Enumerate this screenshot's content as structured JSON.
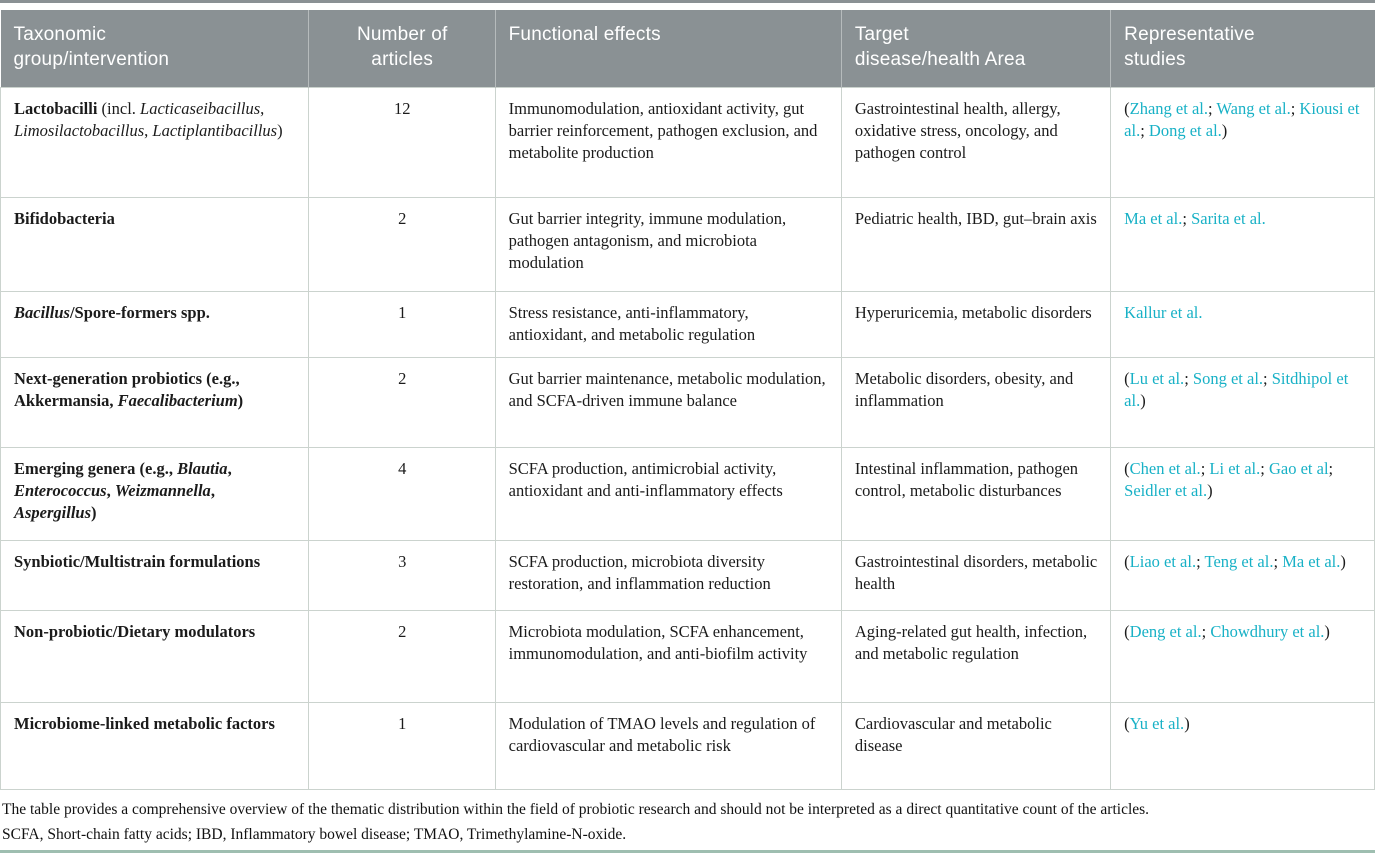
{
  "colors": {
    "accent_link": "#18b1c6",
    "header_bg": "#8a9194",
    "cell_border": "#cbd3ce",
    "bottom_rule": "#9ebeb0"
  },
  "table": {
    "headers": [
      "Taxonomic\ngroup/intervention",
      "Number of\narticles",
      "Functional effects",
      "Target\ndisease/health Area",
      "Representative\nstudies"
    ],
    "rows": [
      {
        "group": [
          {
            "t": "Lactobacilli",
            "b": 1
          },
          {
            "t": " (incl. "
          },
          {
            "t": "Lacticaseibacillus",
            "i": 1
          },
          {
            "t": ", "
          },
          {
            "t": "Limosilactobacillus",
            "i": 1
          },
          {
            "t": ", "
          },
          {
            "t": "Lactiplantibacillus",
            "i": 1
          },
          {
            "t": ")"
          }
        ],
        "count": "12",
        "effects": "Immunomodulation, antioxidant activity, gut barrier reinforcement, pathogen exclusion, and metabolite production",
        "target": "Gastrointestinal health, allergy, oxidative stress, oncology, and pathogen control",
        "studies": {
          "paren": true,
          "links": [
            "Zhang et al.",
            "Wang et al.",
            "Kiousi et al.",
            "Dong et al."
          ]
        }
      },
      {
        "group": [
          {
            "t": "Bifidobacteria",
            "b": 1
          }
        ],
        "count": "2",
        "effects": "Gut barrier integrity, immune modulation, pathogen antagonism, and microbiota modulation",
        "target": "Pediatric health, IBD, gut–brain axis",
        "studies": {
          "paren": false,
          "links": [
            "Ma et al.",
            "Sarita et al."
          ]
        }
      },
      {
        "group": [
          {
            "t": "Bacillus",
            "b": 1,
            "i": 1
          },
          {
            "t": "/Spore-formers spp.",
            "b": 1
          }
        ],
        "count": "1",
        "effects": "Stress resistance, anti-inflammatory, antioxidant, and metabolic regulation",
        "target": "Hyperuricemia, metabolic disorders",
        "studies": {
          "paren": false,
          "links": [
            "Kallur et al."
          ]
        }
      },
      {
        "group": [
          {
            "t": "Next-generation probiotics (e.g., Akkermansia, ",
            "b": 1
          },
          {
            "t": "Faecalibacterium",
            "b": 1,
            "i": 1
          },
          {
            "t": ")",
            "b": 1
          }
        ],
        "count": "2",
        "effects": "Gut barrier maintenance, metabolic modulation, and SCFA-driven immune balance",
        "target": "Metabolic disorders, obesity, and inflammation",
        "studies": {
          "paren": true,
          "links": [
            "Lu et al.",
            "Song et al.",
            "Sitdhipol et al."
          ]
        }
      },
      {
        "group": [
          {
            "t": "Emerging genera (e.g., ",
            "b": 1
          },
          {
            "t": "Blautia",
            "b": 1,
            "i": 1
          },
          {
            "t": ", ",
            "b": 1
          },
          {
            "t": "Enterococcus",
            "b": 1,
            "i": 1
          },
          {
            "t": ", ",
            "b": 1
          },
          {
            "t": "Weizmannella",
            "b": 1,
            "i": 1
          },
          {
            "t": ", ",
            "b": 1
          },
          {
            "t": "Aspergillus",
            "b": 1,
            "i": 1
          },
          {
            "t": ")",
            "b": 1
          }
        ],
        "count": "4",
        "effects": "SCFA production, antimicrobial activity, antioxidant and anti-inflammatory effects",
        "target": "Intestinal inflammation, pathogen control, metabolic disturbances",
        "studies": {
          "paren": true,
          "links": [
            "Chen et al.",
            "Li et al.",
            "Gao et al",
            "Seidler et al."
          ]
        }
      },
      {
        "group": [
          {
            "t": "Synbiotic/Multistrain formulations",
            "b": 1
          }
        ],
        "count": "3",
        "effects": "SCFA production, microbiota diversity restoration, and inflammation reduction",
        "target": "Gastrointestinal disorders, metabolic health",
        "studies": {
          "paren": true,
          "links": [
            "Liao et al.",
            "Teng et al.",
            "Ma et al."
          ]
        }
      },
      {
        "group": [
          {
            "t": "Non-probiotic/Dietary modulators",
            "b": 1
          }
        ],
        "count": "2",
        "effects": "Microbiota modulation, SCFA enhancement, immunomodulation, and anti-biofilm activity",
        "target": "Aging-related gut health, infection, and metabolic regulation",
        "studies": {
          "paren": true,
          "links": [
            "Deng et al.",
            "Chowdhury et al."
          ]
        }
      },
      {
        "group": [
          {
            "t": "Microbiome-linked metabolic factors",
            "b": 1
          }
        ],
        "count": "1",
        "effects": "Modulation of TMAO levels and regulation of cardiovascular and metabolic risk",
        "target": "Cardiovascular and metabolic disease",
        "studies": {
          "paren": true,
          "links": [
            "Yu et al."
          ]
        }
      }
    ]
  },
  "notes": {
    "line1": "The table provides a comprehensive overview of the thematic distribution within the field of probiotic research and should not be interpreted as a direct quantitative count of the articles.",
    "line2": "SCFA, Short-chain fatty acids; IBD, Inflammatory bowel disease; TMAO, Trimethylamine-N-oxide."
  }
}
